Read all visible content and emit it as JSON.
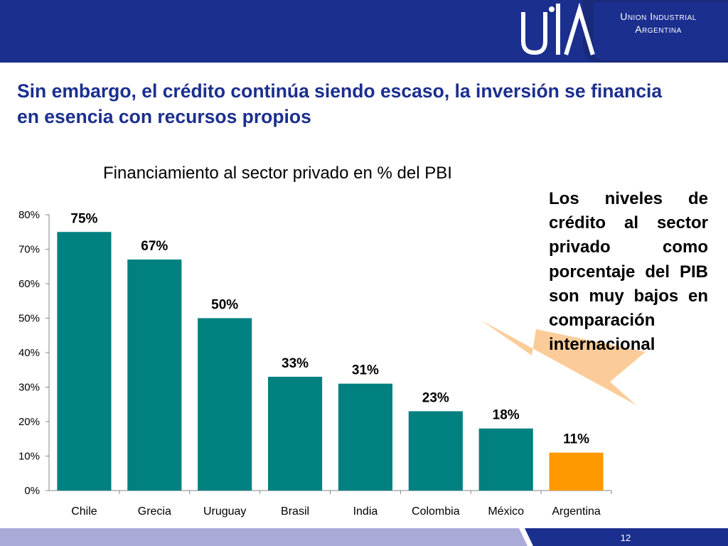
{
  "header": {
    "org_name_line1": "Union Industrial",
    "org_name_line2": "Argentina",
    "logo_icon": "uia-logo-icon"
  },
  "slide": {
    "title": "Sin embargo, el crédito continúa siendo escaso, la inversión se financia en esencia con recursos propios",
    "note": "Los niveles de crédito al sector privado como porcentaje del PIB son muy bajos en comparación internacional",
    "page_number": "12"
  },
  "colors": {
    "header": "#1b2f8e",
    "bar": "#00807f",
    "highlight_bar": "#ff9900",
    "callout_arrow": "#fbcc99",
    "footer": "#a9aad7"
  },
  "chart_data": {
    "type": "bar",
    "title": "Financiamiento al sector privado en % del PBI",
    "categories": [
      "Chile",
      "Grecia",
      "Uruguay",
      "Brasil",
      "India",
      "Colombia",
      "México",
      "Argentina"
    ],
    "values": [
      75,
      67,
      50,
      33,
      31,
      23,
      18,
      11
    ],
    "data_labels": [
      "75%",
      "67%",
      "50%",
      "33%",
      "31%",
      "23%",
      "18%",
      "11%"
    ],
    "highlight_category": "Argentina",
    "ylim": [
      0,
      80
    ],
    "yticks": [
      "0%",
      "10%",
      "20%",
      "30%",
      "40%",
      "50%",
      "60%",
      "70%",
      "80%"
    ],
    "xlabel": "",
    "ylabel": "",
    "grid": false,
    "legend": "none"
  }
}
